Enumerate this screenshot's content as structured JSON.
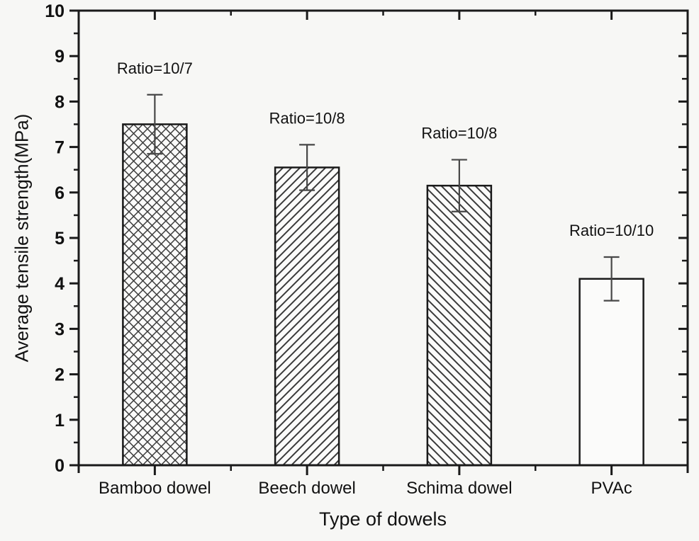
{
  "figure": {
    "background": "#f7f7f5"
  },
  "chart_data": {
    "type": "bar",
    "title": "",
    "categories": [
      "Bamboo dowel",
      "Beech dowel",
      "Schima dowel",
      "PVAc"
    ],
    "values": [
      7.5,
      6.55,
      6.15,
      4.1
    ],
    "error_bars": [
      0.65,
      0.5,
      0.57,
      0.48
    ],
    "bar_annotations": [
      "Ratio=10/7",
      "Ratio=10/8",
      "Ratio=10/8",
      "Ratio=10/10"
    ],
    "bar_hatches": [
      "crosshatch",
      "diagonal-forward",
      "diagonal-backward",
      "none"
    ],
    "xlabel": "Type of dowels",
    "ylabel": "Average tensile strength(MPa)",
    "ylim": [
      0,
      10
    ],
    "ytick_interval": 1,
    "yminor_interval": 0.5,
    "ytick_labels": [
      "0",
      "1",
      "2",
      "3",
      "4",
      "5",
      "6",
      "7",
      "8",
      "9",
      "10"
    ],
    "grid": false,
    "legend": "none",
    "colors": {
      "line": "#1a1a1a",
      "text": "#111111",
      "hatch": "#3a3a3a",
      "error_bar": "#474747",
      "bar_fill": "#fbfbfa",
      "background": "#f7f7f5"
    }
  }
}
